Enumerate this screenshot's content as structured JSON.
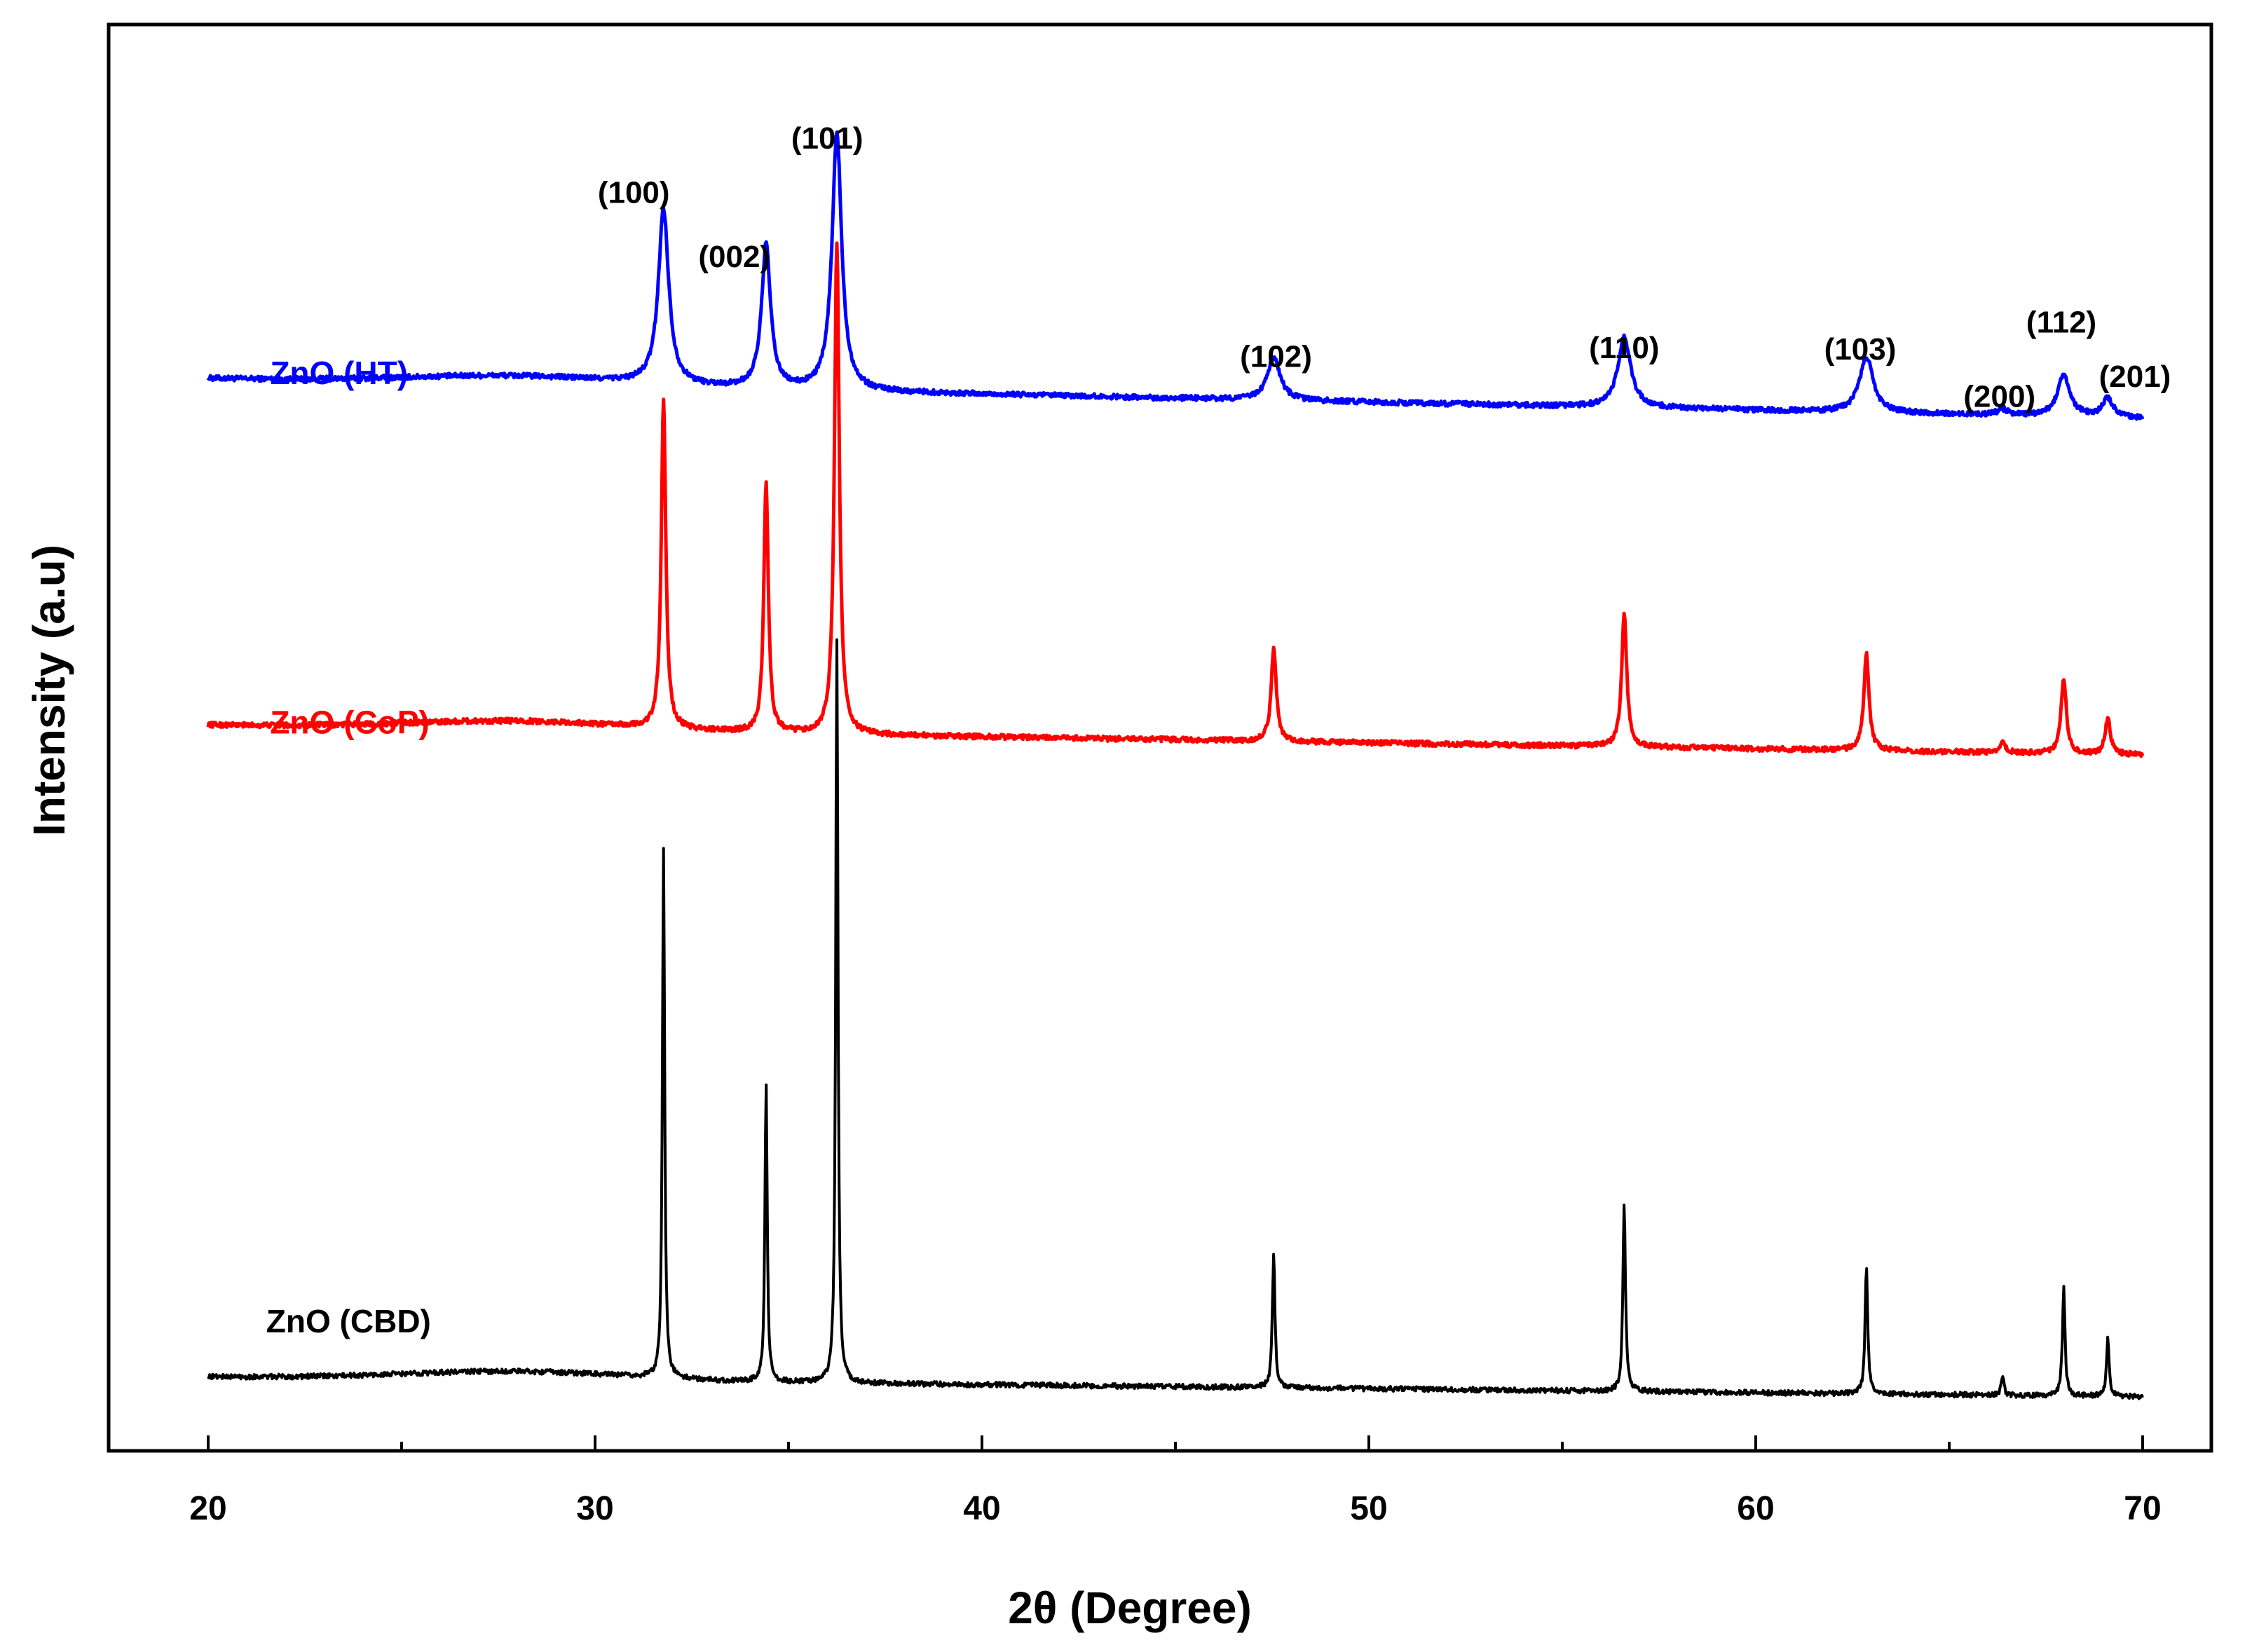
{
  "chart_data": {
    "type": "line",
    "title": "",
    "xlabel": "2θ (Degree)",
    "ylabel": "Intensity (a.u)",
    "xlim": [
      18,
      72
    ],
    "ylim": [
      0,
      100
    ],
    "xticks": [
      20,
      30,
      40,
      50,
      60,
      70
    ],
    "grid": false,
    "legend": "none (inline series labels at left)",
    "series": [
      {
        "name": "ZnO (HT)",
        "color": "#0000ff",
        "baseline_start": 75.2,
        "baseline_end": 72.4,
        "peaks": [
          {
            "x": 31.77,
            "height": 12.3,
            "width": 0.32
          },
          {
            "x": 34.42,
            "height": 10.0,
            "width": 0.28
          },
          {
            "x": 36.25,
            "height": 18.0,
            "width": 0.3
          },
          {
            "x": 47.54,
            "height": 3.0,
            "width": 0.4
          },
          {
            "x": 56.6,
            "height": 4.9,
            "width": 0.4
          },
          {
            "x": 62.86,
            "height": 3.9,
            "width": 0.42
          },
          {
            "x": 66.38,
            "height": 0.4,
            "width": 0.3
          },
          {
            "x": 67.96,
            "height": 2.8,
            "width": 0.4
          },
          {
            "x": 69.1,
            "height": 1.3,
            "width": 0.32
          }
        ]
      },
      {
        "name": "ZnO (CoP)",
        "color": "#ff0000",
        "baseline_start": 50.9,
        "baseline_end": 48.8,
        "peaks": [
          {
            "x": 31.77,
            "height": 23.0,
            "width": 0.14
          },
          {
            "x": 34.42,
            "height": 17.5,
            "width": 0.14
          },
          {
            "x": 36.25,
            "height": 34.5,
            "width": 0.15
          },
          {
            "x": 47.54,
            "height": 6.5,
            "width": 0.16
          },
          {
            "x": 56.6,
            "height": 9.2,
            "width": 0.16
          },
          {
            "x": 62.86,
            "height": 6.8,
            "width": 0.16
          },
          {
            "x": 66.38,
            "height": 0.8,
            "width": 0.16
          },
          {
            "x": 67.96,
            "height": 5.3,
            "width": 0.16
          },
          {
            "x": 69.1,
            "height": 2.5,
            "width": 0.16
          }
        ]
      },
      {
        "name": "ZnO (CBD)",
        "color": "#000000",
        "baseline_start": 5.2,
        "baseline_end": 3.8,
        "peaks": [
          {
            "x": 31.77,
            "height": 37.0,
            "width": 0.07
          },
          {
            "x": 34.42,
            "height": 21.0,
            "width": 0.07
          },
          {
            "x": 36.25,
            "height": 52.0,
            "width": 0.07
          },
          {
            "x": 47.54,
            "height": 9.5,
            "width": 0.08
          },
          {
            "x": 56.6,
            "height": 13.0,
            "width": 0.08
          },
          {
            "x": 62.86,
            "height": 9.0,
            "width": 0.08
          },
          {
            "x": 66.38,
            "height": 1.3,
            "width": 0.08
          },
          {
            "x": 67.96,
            "height": 7.6,
            "width": 0.08
          },
          {
            "x": 69.1,
            "height": 4.0,
            "width": 0.08
          }
        ]
      }
    ],
    "peak_annotations": [
      {
        "label": "(100)",
        "x": 31.0,
        "y": 87.5
      },
      {
        "label": "(002)",
        "x": 33.6,
        "y": 83.0
      },
      {
        "label": "(101)",
        "x": 36.0,
        "y": 91.3
      },
      {
        "label": "(102)",
        "x": 47.6,
        "y": 76.0
      },
      {
        "label": "(110)",
        "x": 56.6,
        "y": 76.6
      },
      {
        "label": "(103)",
        "x": 62.7,
        "y": 76.5
      },
      {
        "label": "(200)",
        "x": 66.3,
        "y": 73.2
      },
      {
        "label": "(112)",
        "x": 67.9,
        "y": 78.4
      },
      {
        "label": "(201)",
        "x": 69.8,
        "y": 74.6
      }
    ],
    "series_labels": [
      {
        "label": "ZnO (HT)",
        "x": 21.6,
        "y": 74.8
      },
      {
        "label": "ZnO (CoP)",
        "x": 21.6,
        "y": 50.3
      },
      {
        "label": "ZnO (CBD)",
        "x": 21.5,
        "y": 8.3
      }
    ]
  }
}
